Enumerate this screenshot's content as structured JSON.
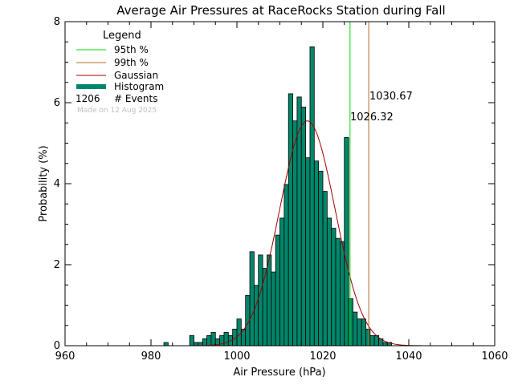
{
  "colors": {
    "histogram": "#00876b",
    "gaussian": "#a00000",
    "p95": "#00dd00",
    "p99": "#b06a2e",
    "note": "#bfbfbf",
    "axis": "#000000"
  },
  "legend": {
    "title": "Legend",
    "p95": "95th %",
    "p99": "99th %",
    "gaussian": "Gaussian",
    "histogram": "Histogram",
    "events_count": "1206",
    "events_label": "# Events"
  },
  "note": "Made on 12 Aug 2025",
  "chart_data": {
    "type": "bar",
    "title": "Average Air Pressures at RaceRocks Station during Fall",
    "xlabel": "Air Pressure (hPa)",
    "ylabel": "Probability (%)",
    "xlim": [
      960,
      1060
    ],
    "ylim": [
      0,
      8
    ],
    "xticks": [
      "960",
      "980",
      "1000",
      "1020",
      "1040",
      "1060"
    ],
    "yticks": [
      "0",
      "2",
      "4",
      "6",
      "8"
    ],
    "bin_width": 1,
    "bins": [
      [
        983,
        0.08
      ],
      [
        989,
        0.25
      ],
      [
        990,
        0.08
      ],
      [
        991,
        0.08
      ],
      [
        992,
        0.17
      ],
      [
        993,
        0.25
      ],
      [
        994,
        0.33
      ],
      [
        995,
        0.17
      ],
      [
        996,
        0.25
      ],
      [
        997,
        0.33
      ],
      [
        998,
        0.25
      ],
      [
        999,
        0.41
      ],
      [
        1000,
        0.66
      ],
      [
        1001,
        0.41
      ],
      [
        1002,
        1.24
      ],
      [
        1003,
        2.32
      ],
      [
        1004,
        1.49
      ],
      [
        1005,
        2.24
      ],
      [
        1006,
        1.91
      ],
      [
        1007,
        2.24
      ],
      [
        1008,
        1.82
      ],
      [
        1009,
        2.73
      ],
      [
        1010,
        3.15
      ],
      [
        1011,
        3.98
      ],
      [
        1012,
        6.22
      ],
      [
        1013,
        5.55
      ],
      [
        1014,
        6.14
      ],
      [
        1015,
        5.89
      ],
      [
        1016,
        4.64
      ],
      [
        1017,
        7.38
      ],
      [
        1018,
        4.56
      ],
      [
        1019,
        4.31
      ],
      [
        1020,
        3.81
      ],
      [
        1021,
        3.15
      ],
      [
        1022,
        2.9
      ],
      [
        1023,
        2.65
      ],
      [
        1024,
        2.57
      ],
      [
        1025,
        5.14
      ],
      [
        1026,
        1.16
      ],
      [
        1027,
        0.83
      ],
      [
        1028,
        0.66
      ],
      [
        1029,
        0.66
      ],
      [
        1030,
        0.41
      ],
      [
        1031,
        0.25
      ],
      [
        1032,
        0.25
      ],
      [
        1033,
        0.17
      ],
      [
        1034,
        0.08
      ],
      [
        1035,
        0.08
      ]
    ],
    "gaussian": {
      "mean": 1016.4,
      "sigma": 6.45,
      "peak": 5.55
    },
    "p95": {
      "value": 1026.32,
      "label": "1026.32"
    },
    "p99": {
      "value": 1030.67,
      "label": "1030.67"
    }
  }
}
